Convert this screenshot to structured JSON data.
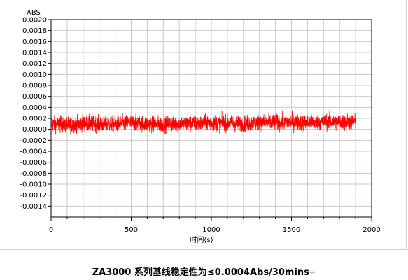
{
  "caption": {
    "text": "ZA3000 系列基线稳定性为≤0.0004Abs/30mins",
    "mark": "↵"
  },
  "chart_data": {
    "type": "line",
    "title": "",
    "xlabel": "时间(s)",
    "ylabel": "ABS",
    "xlim": [
      0,
      2000
    ],
    "ylim": [
      -0.0016,
      0.002
    ],
    "x_ticks": [
      0,
      500,
      1000,
      1500,
      2000
    ],
    "x_tick_labels": [
      "0",
      "500",
      "1000",
      "1500",
      "2000"
    ],
    "y_ticks": [
      0.002,
      0.0018,
      0.0016,
      0.0014,
      0.0012,
      0.001,
      0.0008,
      0.0006,
      0.0004,
      0.0002,
      0.0,
      -0.0002,
      -0.0004,
      -0.0006,
      -0.0008,
      -0.001,
      -0.0012,
      -0.0014
    ],
    "y_tick_labels": [
      "0.0020",
      "0.0018",
      "0.0016",
      "0.0014",
      "0.0012",
      "0.0010",
      "0.0008",
      "0.0006",
      "0.0004",
      "0.0002",
      "0.0000",
      "-0.0002",
      "-0.0004",
      "-0.0006",
      "-0.0008",
      "-0.0010",
      "-0.0012",
      "-0.0014"
    ],
    "grid": true,
    "series": [
      {
        "color": "#ff0000",
        "x_range": [
          0,
          1900
        ],
        "description": "noisy baseline signal around 0.0001 ABS, fluctuating roughly between -0.0003 and 0.0005",
        "points": [
          [
            0,
            0.0001
          ],
          [
            100,
            8e-05
          ],
          [
            200,
            0.00011
          ],
          [
            300,
            9e-05
          ],
          [
            400,
            0.0001
          ],
          [
            500,
            0.00012
          ],
          [
            600,
            0.0001
          ],
          [
            700,
            9e-05
          ],
          [
            800,
            0.00011
          ],
          [
            900,
            0.0001
          ],
          [
            1000,
            0.00012
          ],
          [
            1100,
            0.00011
          ],
          [
            1200,
            0.0001
          ],
          [
            1300,
            0.00013
          ],
          [
            1400,
            0.00012
          ],
          [
            1500,
            0.00013
          ],
          [
            1600,
            0.00012
          ],
          [
            1700,
            0.00014
          ],
          [
            1800,
            0.00013
          ],
          [
            1900,
            0.00014
          ]
        ],
        "noise_amplitude": 0.00023
      }
    ]
  }
}
